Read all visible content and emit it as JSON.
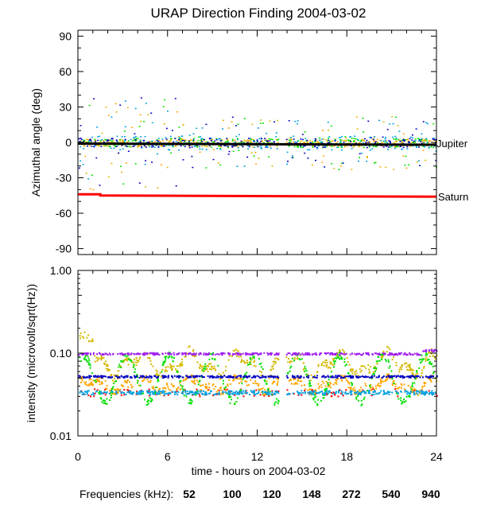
{
  "chart_data": [
    {
      "type": "scatter",
      "title": "URAP Direction Finding  2004-03-02",
      "ylabel": "Azimuthal angle (deg)",
      "xlabel": "",
      "xlim": [
        0,
        24
      ],
      "ylim": [
        -95,
        95
      ],
      "yticks": [
        90,
        60,
        30,
        0,
        -30,
        -60,
        -90
      ],
      "ytick_labels": [
        "90",
        "60",
        "30",
        "0",
        "-30",
        "-60",
        "-90"
      ],
      "reference_lines": [
        {
          "name": "Jupiter",
          "color": "#000000",
          "x": [
            0,
            24
          ],
          "y": [
            -1,
            -2
          ]
        },
        {
          "name": "Saturn",
          "color": "#ff0000",
          "x": [
            0,
            1.5,
            1.5,
            24
          ],
          "y": [
            -44,
            -44,
            -45,
            -46
          ]
        }
      ],
      "series": [
        {
          "name": "100",
          "color": "#ffa500",
          "core_y": 0,
          "spread": 6
        },
        {
          "name": "120",
          "color": "#d4b800",
          "core_y": 0,
          "spread": 7
        },
        {
          "name": "148",
          "color": "#00e000",
          "core_y": 0,
          "spread": 8
        },
        {
          "name": "272",
          "color": "#00a0e0",
          "core_y": 0,
          "spread": 12
        },
        {
          "name": "540",
          "color": "#0000c0",
          "core_y": 0,
          "spread": 8
        }
      ],
      "data_gap_hours": [
        13.4,
        13.9
      ]
    },
    {
      "type": "scatter",
      "ylabel": "intensity (microvolt/sqrt(Hz))",
      "xlabel": "time - hours on 2004-03-02",
      "xlim": [
        0,
        24
      ],
      "yscale": "log",
      "ylim": [
        0.01,
        1.0
      ],
      "yticks": [
        1.0,
        0.1,
        0.01
      ],
      "ytick_labels": [
        "1.00",
        "0.10",
        "0.01"
      ],
      "xticks": [
        0,
        6,
        12,
        18,
        24
      ],
      "xtick_labels": [
        "0",
        "6",
        "12",
        "18",
        "24"
      ],
      "series": [
        {
          "name": "52",
          "color": "#ff0000",
          "level": 0.034
        },
        {
          "name": "100",
          "color": "#ffa500",
          "level": 0.042
        },
        {
          "name": "120",
          "color": "#d4b800",
          "level": 0.075
        },
        {
          "name": "148",
          "color": "#00e000",
          "level": 0.055
        },
        {
          "name": "272",
          "color": "#00a0e0",
          "level": 0.034
        },
        {
          "name": "540",
          "color": "#0000c0",
          "level": 0.053
        },
        {
          "name": "940",
          "color": "#a020f0",
          "level": 0.1
        }
      ],
      "data_gap_hours": [
        13.4,
        13.9
      ]
    }
  ],
  "legend": {
    "label": "Frequencies (kHz):",
    "items": [
      {
        "text": "52",
        "color": "#ff0000"
      },
      {
        "text": "100",
        "color": "#ffa500"
      },
      {
        "text": "120",
        "color": "#d4b800"
      },
      {
        "text": "148",
        "color": "#00e000"
      },
      {
        "text": "272",
        "color": "#00a0e0"
      },
      {
        "text": "540",
        "color": "#0000c0"
      },
      {
        "text": "940",
        "color": "#a020f0"
      }
    ]
  }
}
